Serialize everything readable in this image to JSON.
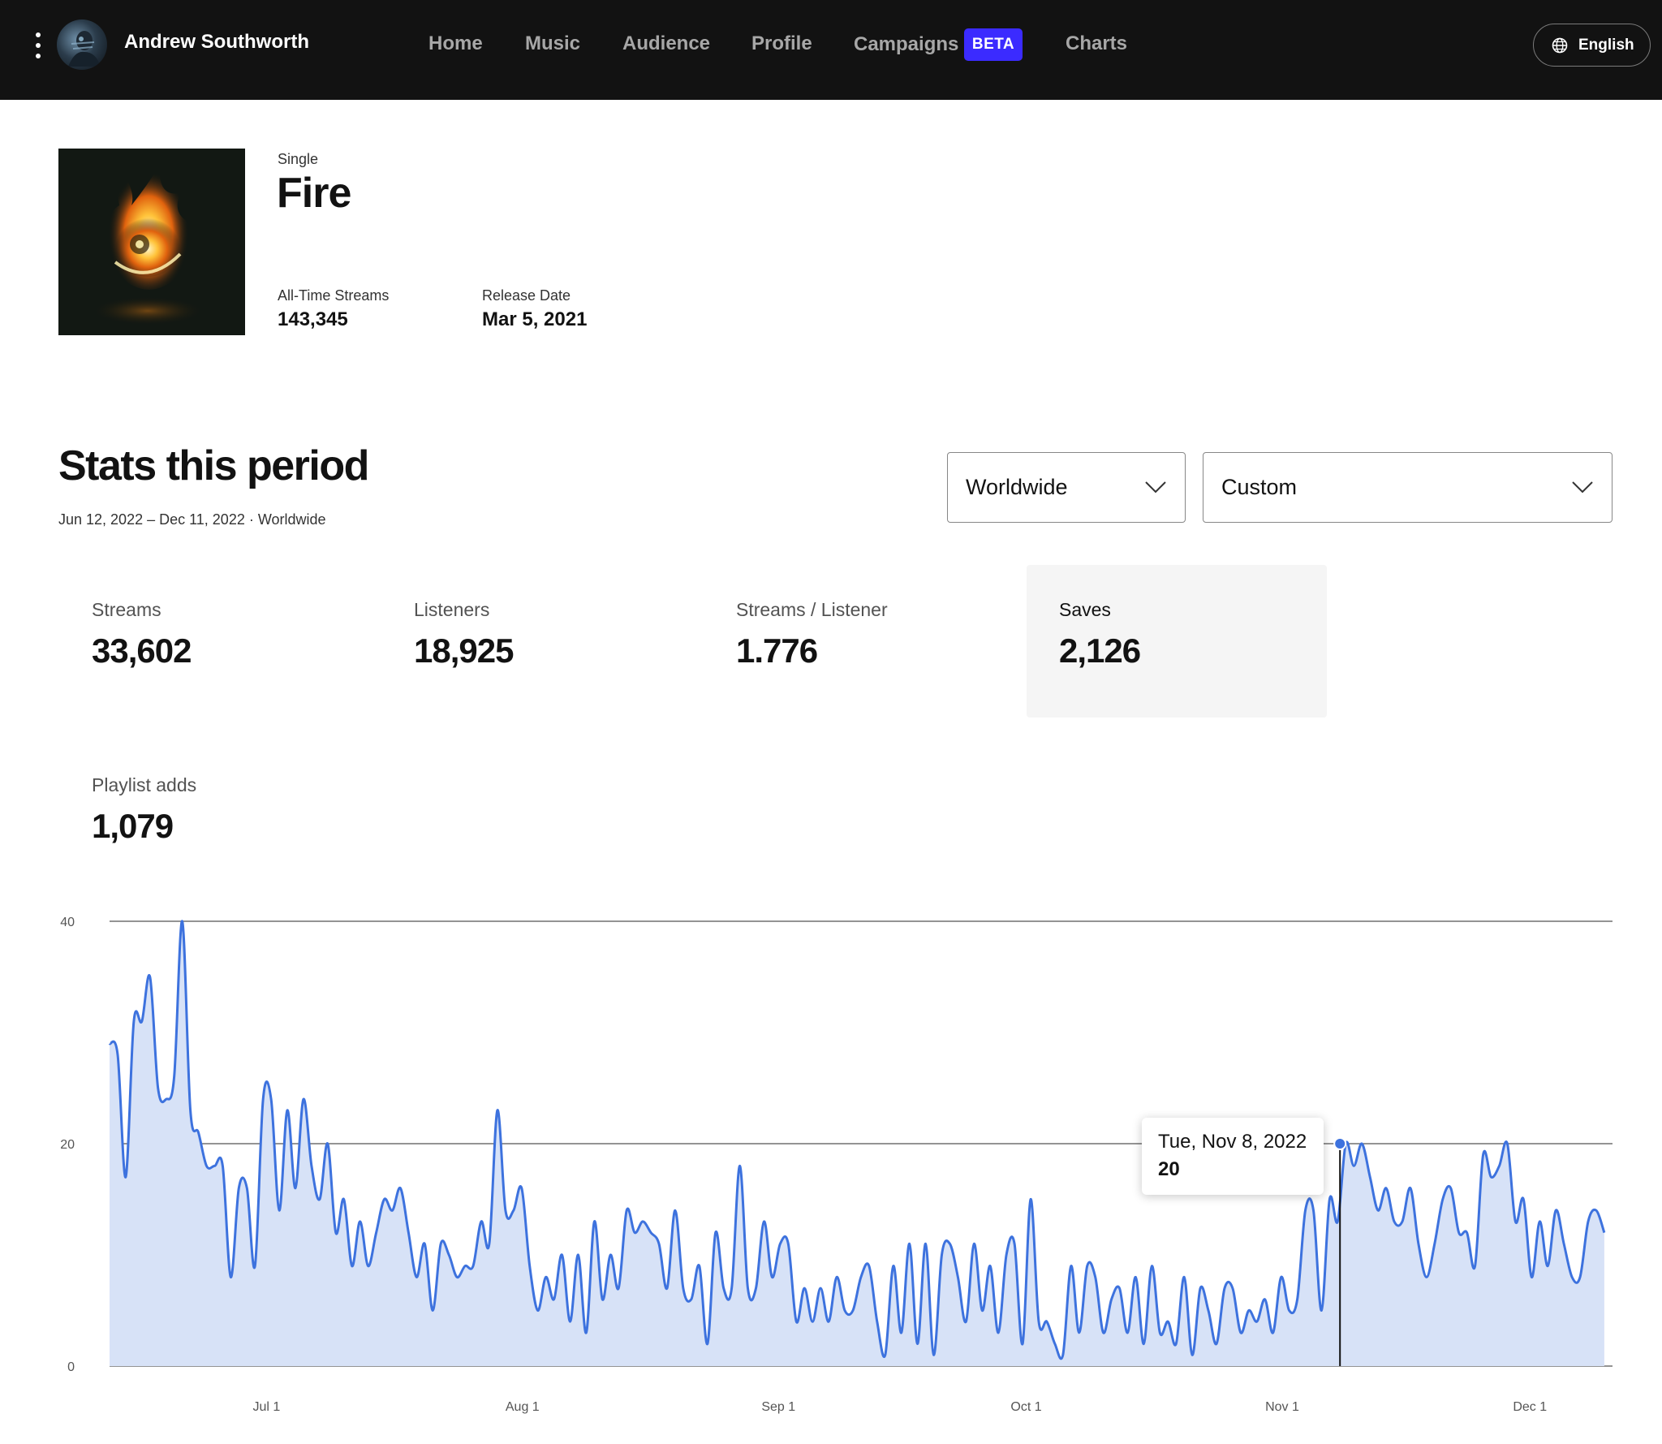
{
  "header": {
    "artist_name": "Andrew Southworth",
    "nav": [
      {
        "label": "Home"
      },
      {
        "label": "Music"
      },
      {
        "label": "Audience"
      },
      {
        "label": "Profile"
      },
      {
        "label": "Campaigns"
      },
      {
        "label": "Charts"
      }
    ],
    "beta_badge": "BETA",
    "language": "English",
    "colors": {
      "bar": "#121212",
      "beta": "#3b2bff"
    }
  },
  "release": {
    "type": "Single",
    "title": "Fire",
    "all_time_label": "All-Time Streams",
    "all_time_value": "143,345",
    "release_date_label": "Release Date",
    "release_date_value": "Mar 5, 2021"
  },
  "stats": {
    "title": "Stats this period",
    "range": "Jun 12, 2022 – Dec 11, 2022 · Worldwide",
    "region_select": "Worldwide",
    "period_select": "Custom",
    "metrics": [
      {
        "label": "Streams",
        "value": "33,602",
        "selected": false
      },
      {
        "label": "Listeners",
        "value": "18,925",
        "selected": false
      },
      {
        "label": "Streams / Listener",
        "value": "1.776",
        "selected": false
      },
      {
        "label": "Saves",
        "value": "2,126",
        "selected": true
      },
      {
        "label": "Playlist adds",
        "value": "1,079",
        "selected": false
      }
    ]
  },
  "chart_data": {
    "type": "area",
    "metric": "Saves",
    "start_date": "2022-06-12",
    "end_date": "2022-12-11",
    "ylim": [
      0,
      40
    ],
    "yticks": [
      0,
      20,
      40
    ],
    "xticks": [
      {
        "label": "Jul 1",
        "date": "2022-07-01"
      },
      {
        "label": "Aug 1",
        "date": "2022-08-01"
      },
      {
        "label": "Sep 1",
        "date": "2022-09-01"
      },
      {
        "label": "Oct 1",
        "date": "2022-10-01"
      },
      {
        "label": "Nov 1",
        "date": "2022-11-01"
      },
      {
        "label": "Dec 1",
        "date": "2022-12-01"
      }
    ],
    "values": [
      29,
      28,
      17,
      31,
      31,
      35,
      25,
      24,
      26,
      40,
      23,
      21,
      18,
      18,
      18,
      8,
      16,
      16,
      9,
      24,
      24,
      14,
      23,
      16,
      24,
      18,
      15,
      20,
      12,
      15,
      9,
      13,
      9,
      12,
      15,
      14,
      16,
      12,
      8,
      11,
      5,
      11,
      10,
      8,
      9,
      9,
      13,
      11,
      23,
      14,
      14,
      16,
      9,
      5,
      8,
      6,
      10,
      4,
      10,
      3,
      13,
      6,
      10,
      7,
      14,
      12,
      13,
      12,
      11,
      7,
      14,
      7,
      6,
      9,
      2,
      12,
      7,
      7,
      18,
      7,
      7,
      13,
      8,
      11,
      11,
      4,
      7,
      4,
      7,
      4,
      8,
      5,
      5,
      8,
      9,
      4,
      1,
      9,
      3,
      11,
      2,
      11,
      1,
      10,
      11,
      8,
      4,
      11,
      5,
      9,
      3,
      10,
      11,
      2,
      15,
      4,
      4,
      2,
      1,
      9,
      3,
      9,
      8,
      3,
      6,
      7,
      3,
      8,
      2,
      9,
      3,
      4,
      2,
      8,
      1,
      7,
      5,
      2,
      7,
      7,
      3,
      5,
      4,
      6,
      3,
      8,
      5,
      6,
      14,
      14,
      5,
      15,
      13,
      20,
      18,
      20,
      17,
      14,
      16,
      13,
      13,
      16,
      11,
      8,
      11,
      15,
      16,
      12,
      12,
      9,
      19,
      17,
      18,
      20,
      13,
      15,
      8,
      13,
      9,
      14,
      11,
      8,
      8,
      13,
      14,
      12
    ],
    "tooltip": {
      "date": "Tue, Nov 8, 2022",
      "value": "20"
    },
    "colors": {
      "line": "#3d72de",
      "fill": "#d7e2f7",
      "grid": "#555555",
      "cursor": "#121212"
    }
  }
}
